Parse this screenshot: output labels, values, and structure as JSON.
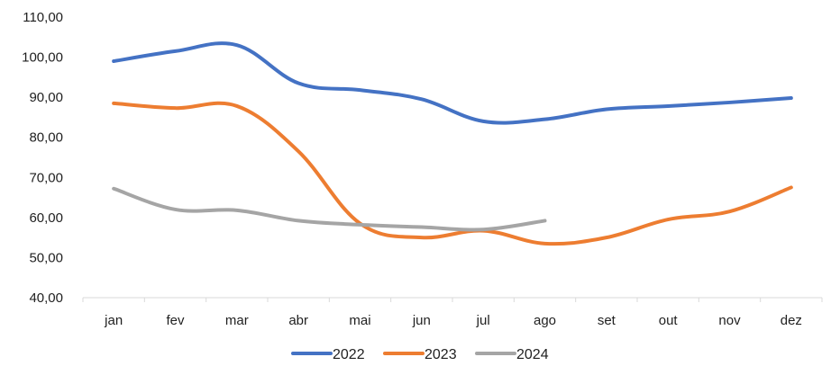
{
  "chart_data": {
    "type": "line",
    "categories": [
      "jan",
      "fev",
      "mar",
      "abr",
      "mai",
      "jun",
      "jul",
      "ago",
      "set",
      "out",
      "nov",
      "dez"
    ],
    "series": [
      {
        "name": "2022",
        "color": "#4472C4",
        "values": [
          99.0,
          101.5,
          103.0,
          93.5,
          91.8,
          89.5,
          84.0,
          84.5,
          87.0,
          87.8,
          88.7,
          89.8
        ]
      },
      {
        "name": "2023",
        "color": "#ED7D31",
        "values": [
          88.5,
          87.3,
          87.8,
          76.5,
          58.5,
          55.0,
          56.7,
          53.5,
          55.0,
          59.5,
          61.5,
          67.5
        ]
      },
      {
        "name": "2024",
        "color": "#A5A5A5",
        "values": [
          67.2,
          62.0,
          61.8,
          59.2,
          58.2,
          57.6,
          57.0,
          59.2,
          null,
          null,
          null,
          null
        ]
      }
    ],
    "title": "",
    "xlabel": "",
    "ylabel": "",
    "ylim": [
      40,
      110
    ],
    "yticks": [
      "40,00",
      "50,00",
      "60,00",
      "70,00",
      "80,00",
      "90,00",
      "100,00",
      "110,00"
    ],
    "grid": false,
    "legend": "bottom"
  }
}
